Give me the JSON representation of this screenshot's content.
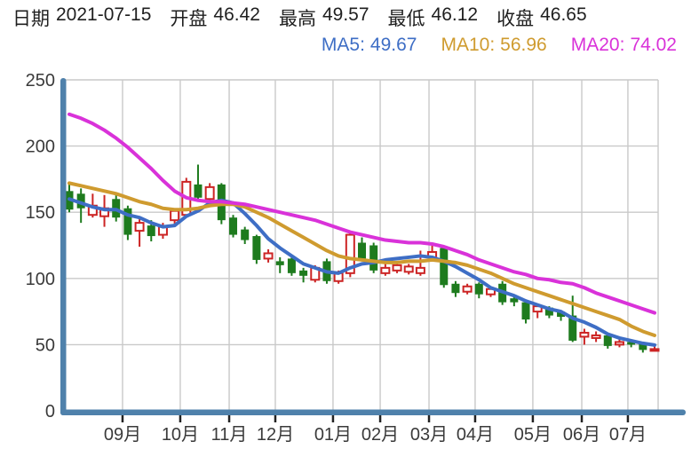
{
  "header": {
    "fields": [
      {
        "key": "date",
        "label": "日期",
        "value": "2021-07-15"
      },
      {
        "key": "open",
        "label": "开盘",
        "value": "46.42"
      },
      {
        "key": "high",
        "label": "最高",
        "value": "49.57"
      },
      {
        "key": "low",
        "label": "最低",
        "value": "46.12"
      },
      {
        "key": "close",
        "label": "收盘",
        "value": "46.65"
      }
    ],
    "ma_legend": [
      {
        "key": "ma5",
        "label": "MA5:",
        "value": "49.67",
        "color": "#3e6ec5"
      },
      {
        "key": "ma10",
        "label": "MA10:",
        "value": "56.96",
        "color": "#cf9b2f"
      },
      {
        "key": "ma20",
        "label": "MA20:",
        "value": "74.02",
        "color": "#d932d9"
      }
    ]
  },
  "chart_data": {
    "type": "candlestick",
    "title": "",
    "xlabel": "",
    "ylabel": "",
    "ylim": [
      0,
      250
    ],
    "y_ticks": [
      0,
      50,
      100,
      150,
      200,
      250
    ],
    "grid": true,
    "x_tick_labels": [
      "09月",
      "10月",
      "11月",
      "12月",
      "01月",
      "02月",
      "03月",
      "04月",
      "05月",
      "06月",
      "07月"
    ],
    "x_tick_candle_index": [
      4.55,
      9.48,
      13.66,
      17.6,
      22.53,
      26.56,
      30.73,
      34.67,
      39.6,
      43.78,
      47.72
    ],
    "candles_ohlc": [
      [
        166,
        171,
        150,
        152
      ],
      [
        164,
        168,
        142,
        153
      ],
      [
        148,
        164,
        146,
        155
      ],
      [
        147,
        163,
        139,
        153
      ],
      [
        160,
        164,
        143,
        146
      ],
      [
        153,
        155,
        129,
        133
      ],
      [
        136,
        146,
        124,
        142
      ],
      [
        140,
        144,
        128,
        132
      ],
      [
        133,
        142,
        130,
        139
      ],
      [
        144,
        153,
        141,
        151
      ],
      [
        148,
        176,
        146,
        173
      ],
      [
        171,
        186,
        158,
        161
      ],
      [
        160,
        172,
        157,
        169
      ],
      [
        171,
        172,
        141,
        144
      ],
      [
        146,
        148,
        131,
        133
      ],
      [
        137,
        139,
        126,
        129
      ],
      [
        132,
        133,
        111,
        114
      ],
      [
        115,
        122,
        112,
        119
      ],
      [
        113,
        116,
        104,
        110
      ],
      [
        115,
        116,
        102,
        104
      ],
      [
        106,
        108,
        97,
        102
      ],
      [
        99,
        110,
        97,
        108
      ],
      [
        113,
        115,
        96,
        98
      ],
      [
        98,
        106,
        96,
        104
      ],
      [
        104,
        136,
        101,
        133
      ],
      [
        127,
        131,
        113,
        115
      ],
      [
        125,
        127,
        104,
        106
      ],
      [
        104,
        111,
        102,
        108
      ],
      [
        106,
        112,
        104,
        110
      ],
      [
        105,
        111,
        103,
        109
      ],
      [
        104,
        121,
        102,
        108
      ],
      [
        116,
        125,
        114,
        120
      ],
      [
        123,
        124,
        93,
        95
      ],
      [
        96,
        98,
        86,
        89
      ],
      [
        90,
        96,
        88,
        94
      ],
      [
        96,
        97,
        85,
        88
      ],
      [
        88,
        94,
        86,
        92
      ],
      [
        96,
        98,
        80,
        82
      ],
      [
        85,
        88,
        79,
        82
      ],
      [
        82,
        84,
        66,
        69
      ],
      [
        75,
        81,
        70,
        79
      ],
      [
        78,
        79,
        70,
        72
      ],
      [
        75,
        76,
        68,
        71
      ],
      [
        72,
        87,
        52,
        53
      ],
      [
        56,
        62,
        50,
        59
      ],
      [
        55,
        60,
        52,
        57
      ],
      [
        57,
        58,
        47,
        49
      ],
      [
        50,
        54,
        48,
        52
      ],
      [
        52,
        54,
        48,
        50
      ],
      [
        51,
        52,
        44,
        46
      ],
      [
        46.42,
        49.57,
        46.12,
        46.65
      ]
    ],
    "series": [
      {
        "name": "MA5",
        "color": "#3e6ec5",
        "values": [
          160,
          157,
          154,
          152,
          152,
          148,
          146,
          142,
          139,
          140,
          147,
          151,
          157,
          159,
          157,
          149,
          140,
          130,
          123,
          117,
          111,
          108,
          105,
          104,
          108,
          111,
          112,
          114,
          115,
          116,
          117,
          116,
          113,
          109,
          104,
          99,
          93,
          90,
          87,
          83,
          80,
          77,
          75,
          70,
          67,
          63,
          58,
          55,
          53,
          51,
          49.67
        ]
      },
      {
        "name": "MA10",
        "color": "#cf9b2f",
        "values": [
          172,
          170,
          168,
          166,
          164,
          161,
          158,
          156,
          153,
          152,
          152,
          153,
          155,
          156,
          156,
          154,
          150,
          146,
          141,
          136,
          131,
          126,
          121,
          117,
          115,
          114,
          113,
          112,
          112,
          113,
          113,
          114,
          113,
          112,
          110,
          107,
          104,
          100,
          96,
          93,
          90,
          87,
          84,
          81,
          78,
          75,
          72,
          69,
          64,
          60,
          56.96
        ]
      },
      {
        "name": "MA20",
        "color": "#d932d9",
        "values": [
          224,
          221,
          217,
          212,
          206,
          199,
          191,
          183,
          174,
          166,
          161,
          159,
          158,
          158,
          157,
          156,
          154,
          152,
          150,
          148,
          146,
          144,
          141,
          138,
          135,
          133,
          131,
          129,
          128,
          127,
          127,
          126,
          124,
          121,
          118,
          114,
          111,
          108,
          105,
          103,
          100,
          99,
          97,
          96,
          93,
          89,
          86,
          83,
          80,
          77,
          74.02
        ]
      }
    ],
    "colors": {
      "up": "#cc2424",
      "down": "#1e7b1e",
      "axis": "#4f81ab",
      "grid": "#c9c9c9",
      "tick": "#222222",
      "label": "#3a3a3a"
    },
    "legend_position": "top-right"
  }
}
